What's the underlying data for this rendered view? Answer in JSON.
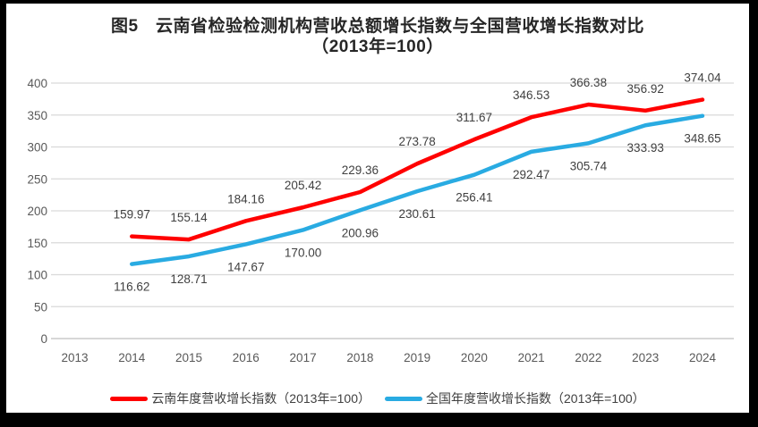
{
  "chart": {
    "title_line1": "图5　云南省检验检测机构营收总额增长指数与全国营收增长指数对比",
    "title_line2": "（2013年=100）",
    "legend": [
      {
        "id": "yunnan",
        "label": "云南年度营收增长指数（2013年=100）",
        "color": "#FF0000"
      },
      {
        "id": "national",
        "label": "全国年度营收增长指数（2013年=100）",
        "color": "#29ABE2"
      }
    ]
  },
  "chart_data": {
    "type": "line",
    "title": "图5 云南省检验检测机构营收总额增长指数与全国营收增长指数对比（2013年=100）",
    "categories": [
      "2013",
      "2014",
      "2015",
      "2016",
      "2017",
      "2018",
      "2019",
      "2020",
      "2021",
      "2022",
      "2023",
      "2024"
    ],
    "series": [
      {
        "id": "yunnan",
        "name": "云南年度营收增长指数（2013年=100）",
        "color": "#FF0000",
        "values": [
          null,
          159.97,
          155.14,
          184.16,
          205.42,
          229.36,
          273.78,
          311.67,
          346.53,
          366.38,
          356.92,
          374.04
        ],
        "point_labels": [
          "",
          "159.97",
          "155.14",
          "184.16",
          "205.42",
          "229.36",
          "273.78",
          "311.67",
          "346.53",
          "366.38",
          "356.92",
          "374.04"
        ],
        "label_position": "above"
      },
      {
        "id": "national",
        "name": "全国年度营收增长指数（2013年=100）",
        "color": "#29ABE2",
        "values": [
          null,
          116.62,
          128.71,
          147.67,
          170.0,
          200.96,
          230.61,
          256.41,
          292.47,
          305.74,
          333.93,
          348.65
        ],
        "point_labels": [
          "",
          "116.62",
          "128.71",
          "147.67",
          "170.00",
          "200.96",
          "230.61",
          "256.41",
          "292.47",
          "305.74",
          "333.93",
          "348.65"
        ],
        "label_position": "below"
      }
    ],
    "ylim": [
      0,
      400
    ],
    "yticks": [
      0,
      50,
      100,
      150,
      200,
      250,
      300,
      350,
      400
    ],
    "grid": "horizontal",
    "legend_position": "bottom",
    "colors": {
      "gridline": "#D9D9D9",
      "baseline": "#BFBFBF",
      "tick_label": "#595959",
      "data_label": "#404040"
    }
  }
}
